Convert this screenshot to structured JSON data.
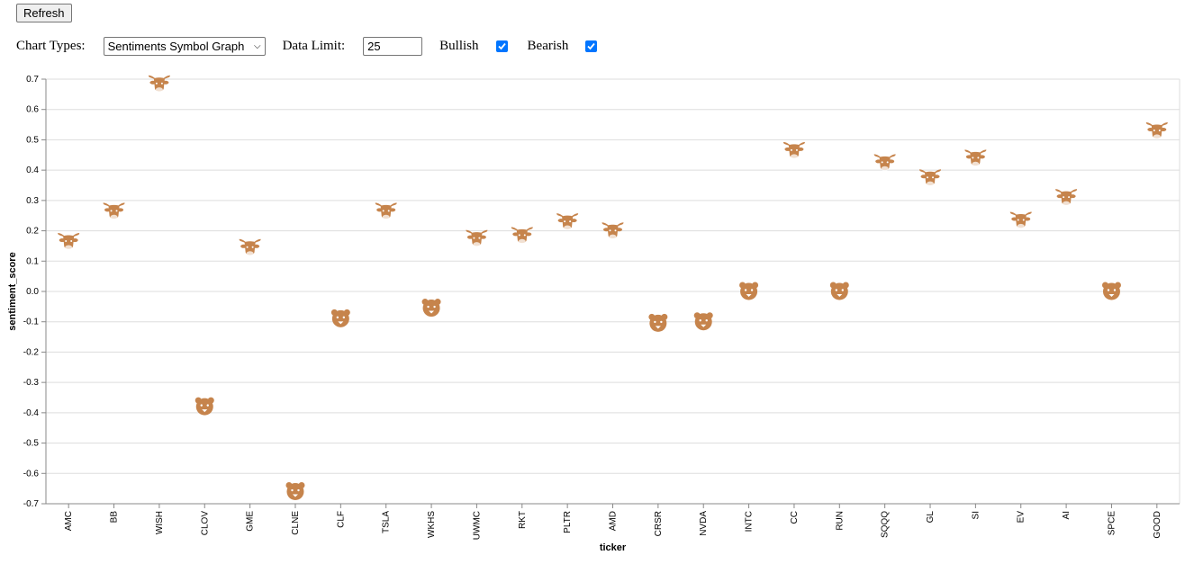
{
  "refresh_label": "Refresh",
  "controls": {
    "chart_types_label": "Chart Types:",
    "chart_type_selected": "Sentiments Symbol Graph",
    "data_limit_label": "Data Limit:",
    "data_limit_value": "25",
    "bullish_label": "Bullish",
    "bullish_checked": true,
    "bearish_label": "Bearish",
    "bearish_checked": true
  },
  "colors": {
    "marker": "#c6844c",
    "grid": "#dddddd",
    "axis": "#888888",
    "checkbox": "#0075ff"
  },
  "chart_data": {
    "type": "scatter",
    "title": "",
    "xlabel": "ticker",
    "ylabel": "sentiment_score",
    "ylim": [
      -0.7,
      0.7
    ],
    "yticks": [
      "0.7",
      "0.6",
      "0.5",
      "0.4",
      "0.3",
      "0.2",
      "0.1",
      "0.0",
      "-0.1",
      "-0.2",
      "-0.3",
      "-0.4",
      "-0.5",
      "-0.6",
      "-0.7"
    ],
    "grid": true,
    "points": [
      {
        "ticker": "AMC",
        "score": 0.16,
        "symbol": "bull"
      },
      {
        "ticker": "BB",
        "score": 0.26,
        "symbol": "bull"
      },
      {
        "ticker": "WISH",
        "score": 0.68,
        "symbol": "bull"
      },
      {
        "ticker": "CLOV",
        "score": -0.38,
        "symbol": "bear"
      },
      {
        "ticker": "GME",
        "score": 0.14,
        "symbol": "bull"
      },
      {
        "ticker": "CLNE",
        "score": -0.66,
        "symbol": "bear"
      },
      {
        "ticker": "CLF",
        "score": -0.09,
        "symbol": "bear"
      },
      {
        "ticker": "TSLA",
        "score": 0.26,
        "symbol": "bull"
      },
      {
        "ticker": "WKHS",
        "score": -0.055,
        "symbol": "bear"
      },
      {
        "ticker": "UWMC",
        "score": 0.17,
        "symbol": "bull"
      },
      {
        "ticker": "RKT",
        "score": 0.18,
        "symbol": "bull"
      },
      {
        "ticker": "PLTR",
        "score": 0.225,
        "symbol": "bull"
      },
      {
        "ticker": "AMD",
        "score": 0.195,
        "symbol": "bull"
      },
      {
        "ticker": "CRSR",
        "score": -0.105,
        "symbol": "bear"
      },
      {
        "ticker": "NVDA",
        "score": -0.1,
        "symbol": "bear"
      },
      {
        "ticker": "INTC",
        "score": 0.0,
        "symbol": "bear"
      },
      {
        "ticker": "CC",
        "score": 0.46,
        "symbol": "bull"
      },
      {
        "ticker": "RUN",
        "score": 0.0,
        "symbol": "bear"
      },
      {
        "ticker": "SQQQ",
        "score": 0.42,
        "symbol": "bull"
      },
      {
        "ticker": "GL",
        "score": 0.37,
        "symbol": "bull"
      },
      {
        "ticker": "SI",
        "score": 0.435,
        "symbol": "bull"
      },
      {
        "ticker": "EV",
        "score": 0.23,
        "symbol": "bull"
      },
      {
        "ticker": "AI",
        "score": 0.305,
        "symbol": "bull"
      },
      {
        "ticker": "SPCE",
        "score": 0.0,
        "symbol": "bear"
      },
      {
        "ticker": "GOOD",
        "score": 0.525,
        "symbol": "bull"
      }
    ]
  }
}
